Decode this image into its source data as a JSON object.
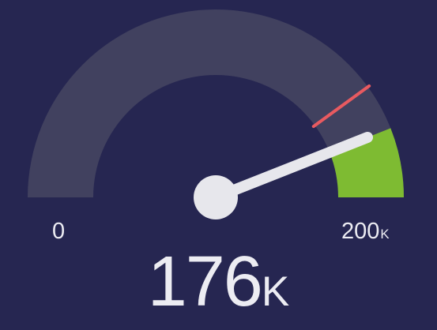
{
  "gauge": {
    "min": 0,
    "max": 200,
    "value": 176,
    "threshold": 160,
    "fill_start": 176,
    "labels": {
      "min": "0",
      "max": "200",
      "max_unit": "K",
      "value": "176",
      "value_unit": "K"
    },
    "colors": {
      "background": "#262651",
      "track": "#41415f",
      "target_fill": "#7ebb32",
      "threshold": "#e85a60",
      "needle": "#e7e7ec",
      "text": "#ececf2"
    }
  }
}
